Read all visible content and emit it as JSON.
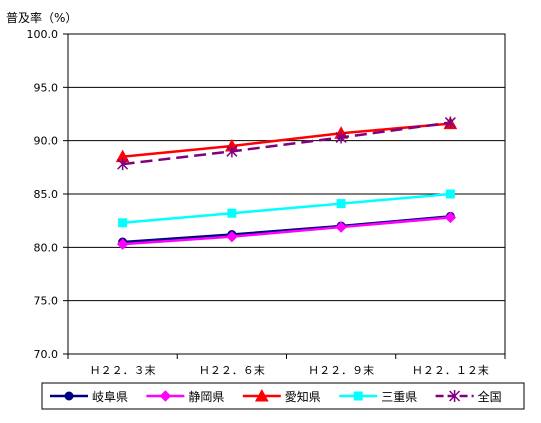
{
  "chart_data": {
    "type": "line",
    "ylabel": "普及率（%）",
    "categories": [
      "Ｈ２２．３末",
      "Ｈ２２．６末",
      "Ｈ２２．９末",
      "Ｈ２２．１２末"
    ],
    "ylim": [
      70,
      100
    ],
    "ytick_step": 5,
    "ytick_labels": [
      "70.0",
      "75.0",
      "80.0",
      "85.0",
      "90.0",
      "95.0",
      "100.0"
    ],
    "grid": true,
    "legend_position": "bottom",
    "series": [
      {
        "name": "岐阜県",
        "values": [
          80.5,
          81.2,
          82.0,
          82.9
        ],
        "color": "#000080",
        "marker": "circle",
        "dash": false
      },
      {
        "name": "静岡県",
        "values": [
          80.3,
          81.0,
          81.9,
          82.8
        ],
        "color": "#ff00ff",
        "marker": "diamond",
        "dash": false
      },
      {
        "name": "愛知県",
        "values": [
          88.5,
          89.5,
          90.7,
          91.6
        ],
        "color": "#ff0000",
        "marker": "triangle",
        "dash": false
      },
      {
        "name": "三重県",
        "values": [
          82.3,
          83.2,
          84.1,
          85.0
        ],
        "color": "#00ffff",
        "marker": "square",
        "dash": false
      },
      {
        "name": "全国",
        "values": [
          87.8,
          89.0,
          90.3,
          91.7
        ],
        "color": "#800080",
        "marker": "star",
        "dash": true
      }
    ]
  }
}
